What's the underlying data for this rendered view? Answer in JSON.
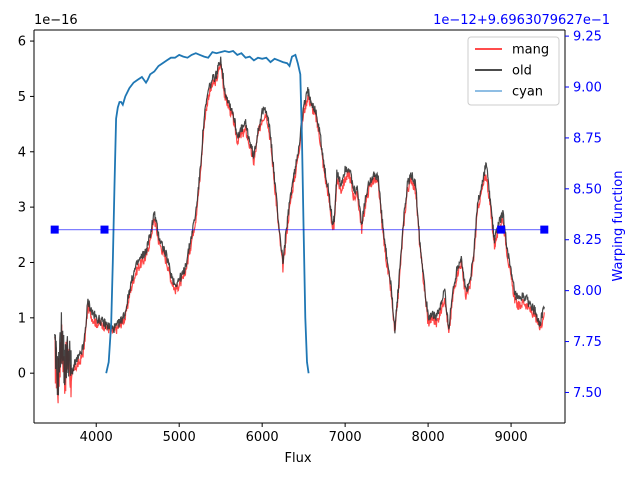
{
  "chart_data": {
    "type": "line",
    "xlabel": "Flux",
    "ylabel_right": "Warping function",
    "left_offset_text": "1e−16",
    "right_offset_text": "1e−12+9.6963079627e−1",
    "xlim": [
      3250,
      9650
    ],
    "ylim_left": [
      -0.9,
      6.2
    ],
    "ylim_right": [
      7.35,
      9.28
    ],
    "x_ticks": [
      4000,
      5000,
      6000,
      7000,
      8000,
      9000
    ],
    "x_tick_labels": [
      "4000",
      "5000",
      "6000",
      "7000",
      "8000",
      "9000"
    ],
    "y_left_ticks": [
      0,
      1,
      2,
      3,
      4,
      5,
      6
    ],
    "y_left_tick_labels": [
      "0",
      "1",
      "2",
      "3",
      "4",
      "5",
      "6"
    ],
    "y_right_ticks": [
      7.5,
      7.75,
      8.0,
      8.25,
      8.5,
      8.75,
      9.0,
      9.25
    ],
    "y_right_tick_labels": [
      "7.50",
      "7.75",
      "8.00",
      "8.25",
      "8.50",
      "8.75",
      "9.00",
      "9.25"
    ],
    "grid": false,
    "legend_position": "top-right",
    "colors": {
      "mang": "#ff3333",
      "old": "#333333",
      "cyan": "#1f77b4",
      "cyan_legend": "#7fb5e0",
      "warp": "#0000ff",
      "right_axis": "#0000ff"
    },
    "series": [
      {
        "name": "mang",
        "axis": "left",
        "x": [
          3500,
          3540,
          3580,
          3620,
          3660,
          3700,
          3750,
          3800,
          3850,
          3900,
          3950,
          4000,
          4050,
          4100,
          4150,
          4200,
          4250,
          4300,
          4350,
          4400,
          4450,
          4500,
          4550,
          4600,
          4650,
          4700,
          4750,
          4800,
          4850,
          4900,
          4950,
          5000,
          5050,
          5100,
          5150,
          5200,
          5250,
          5300,
          5350,
          5400,
          5450,
          5500,
          5550,
          5600,
          5650,
          5700,
          5750,
          5800,
          5850,
          5900,
          5950,
          6000,
          6050,
          6100,
          6150,
          6200,
          6250,
          6300,
          6350,
          6400,
          6450,
          6500,
          6550,
          6600,
          6650,
          6700,
          6750,
          6800,
          6850,
          6870,
          6900,
          6950,
          7000,
          7050,
          7100,
          7150,
          7200,
          7250,
          7300,
          7350,
          7400,
          7450,
          7500,
          7550,
          7600,
          7650,
          7700,
          7750,
          7800,
          7850,
          7900,
          7950,
          8000,
          8050,
          8100,
          8150,
          8200,
          8250,
          8300,
          8350,
          8400,
          8450,
          8500,
          8550,
          8600,
          8650,
          8700,
          8750,
          8800,
          8850,
          8900,
          8950,
          9000,
          9050,
          9100,
          9150,
          9200,
          9250,
          9300,
          9350,
          9400
        ],
        "y": [
          0.3,
          -0.2,
          0.6,
          0.0,
          0.3,
          -0.1,
          0.1,
          0.2,
          0.4,
          1.2,
          1.0,
          0.9,
          0.9,
          0.85,
          0.8,
          0.75,
          0.8,
          0.9,
          1.0,
          1.4,
          1.7,
          1.9,
          2.0,
          2.1,
          2.4,
          2.8,
          2.4,
          2.2,
          2.0,
          1.7,
          1.5,
          1.6,
          1.7,
          2.0,
          2.4,
          2.8,
          3.5,
          4.5,
          5.0,
          5.2,
          5.3,
          5.6,
          5.0,
          4.8,
          4.6,
          4.2,
          4.3,
          4.4,
          4.1,
          3.8,
          4.3,
          4.6,
          4.7,
          4.2,
          3.4,
          2.6,
          1.9,
          2.6,
          3.2,
          3.6,
          4.1,
          4.7,
          5.0,
          4.8,
          4.6,
          4.2,
          3.6,
          3.2,
          2.6,
          2.7,
          3.5,
          3.3,
          3.5,
          3.6,
          3.2,
          3.2,
          2.6,
          3.1,
          3.4,
          3.5,
          3.4,
          2.6,
          2.0,
          1.5,
          0.7,
          1.6,
          2.6,
          3.3,
          3.5,
          3.3,
          2.3,
          1.6,
          0.9,
          1.0,
          0.9,
          1.1,
          1.4,
          0.7,
          1.4,
          1.8,
          2.0,
          1.4,
          1.5,
          2.1,
          3.0,
          3.3,
          3.6,
          3.0,
          2.3,
          2.6,
          2.8,
          2.2,
          1.7,
          1.3,
          1.2,
          1.3,
          1.2,
          1.1,
          1.0,
          0.8,
          1.1
        ]
      },
      {
        "name": "old",
        "axis": "left",
        "x": [
          3500,
          3540,
          3580,
          3620,
          3660,
          3700,
          3750,
          3800,
          3850,
          3900,
          3950,
          4000,
          4050,
          4100,
          4150,
          4200,
          4250,
          4300,
          4350,
          4400,
          4450,
          4500,
          4550,
          4600,
          4650,
          4700,
          4750,
          4800,
          4850,
          4900,
          4950,
          5000,
          5050,
          5100,
          5150,
          5200,
          5250,
          5300,
          5350,
          5400,
          5450,
          5500,
          5550,
          5600,
          5650,
          5700,
          5750,
          5800,
          5850,
          5900,
          5950,
          6000,
          6050,
          6100,
          6150,
          6200,
          6250,
          6300,
          6350,
          6400,
          6450,
          6500,
          6550,
          6600,
          6650,
          6700,
          6750,
          6800,
          6850,
          6870,
          6900,
          6950,
          7000,
          7050,
          7100,
          7150,
          7200,
          7250,
          7300,
          7350,
          7400,
          7450,
          7500,
          7550,
          7600,
          7650,
          7700,
          7750,
          7800,
          7850,
          7900,
          7950,
          8000,
          8050,
          8100,
          8150,
          8200,
          8250,
          8300,
          8350,
          8400,
          8450,
          8500,
          8550,
          8600,
          8650,
          8700,
          8750,
          8800,
          8850,
          8900,
          8950,
          9000,
          9050,
          9100,
          9150,
          9200,
          9250,
          9300,
          9350,
          9400
        ],
        "y": [
          0.4,
          -0.1,
          0.7,
          0.1,
          0.4,
          0.0,
          0.2,
          0.3,
          0.5,
          1.3,
          1.1,
          1.0,
          0.95,
          0.9,
          0.85,
          0.8,
          0.85,
          0.95,
          1.1,
          1.5,
          1.8,
          2.0,
          2.1,
          2.2,
          2.5,
          2.9,
          2.5,
          2.3,
          2.1,
          1.8,
          1.6,
          1.7,
          1.8,
          2.1,
          2.5,
          2.9,
          3.6,
          4.6,
          5.1,
          5.3,
          5.4,
          5.7,
          5.1,
          4.9,
          4.7,
          4.3,
          4.4,
          4.5,
          4.2,
          3.9,
          4.4,
          4.7,
          4.8,
          4.3,
          3.5,
          2.7,
          2.0,
          2.7,
          3.3,
          3.7,
          4.2,
          4.8,
          5.1,
          4.9,
          4.7,
          4.3,
          3.7,
          3.3,
          2.7,
          2.8,
          3.6,
          3.4,
          3.7,
          3.7,
          3.3,
          3.3,
          2.7,
          3.2,
          3.5,
          3.6,
          3.5,
          2.7,
          2.1,
          1.6,
          0.8,
          1.7,
          2.7,
          3.4,
          3.6,
          3.4,
          2.4,
          1.7,
          1.0,
          1.1,
          1.0,
          1.2,
          1.5,
          0.8,
          1.5,
          1.9,
          2.1,
          1.5,
          1.6,
          2.2,
          3.1,
          3.4,
          3.8,
          3.1,
          2.4,
          2.7,
          2.9,
          2.3,
          1.8,
          1.4,
          1.3,
          1.4,
          1.3,
          1.2,
          1.1,
          0.9,
          1.2
        ]
      },
      {
        "name": "cyan",
        "axis": "left",
        "x": [
          4120,
          4150,
          4180,
          4200,
          4220,
          4240,
          4260,
          4280,
          4300,
          4320,
          4350,
          4400,
          4450,
          4500,
          4550,
          4600,
          4620,
          4650,
          4700,
          4750,
          4800,
          4850,
          4900,
          4950,
          5000,
          5050,
          5100,
          5150,
          5200,
          5250,
          5300,
          5350,
          5400,
          5450,
          5500,
          5550,
          5600,
          5650,
          5700,
          5750,
          5800,
          5850,
          5900,
          5950,
          6000,
          6050,
          6100,
          6150,
          6200,
          6250,
          6300,
          6330,
          6360,
          6400,
          6430,
          6460,
          6480,
          6500,
          6520,
          6540,
          6560
        ],
        "y": [
          0.0,
          0.2,
          0.9,
          2.0,
          3.4,
          4.6,
          4.8,
          4.9,
          4.9,
          4.85,
          5.0,
          5.15,
          5.25,
          5.3,
          5.35,
          5.25,
          5.3,
          5.4,
          5.45,
          5.55,
          5.6,
          5.65,
          5.7,
          5.7,
          5.75,
          5.72,
          5.7,
          5.75,
          5.78,
          5.75,
          5.72,
          5.7,
          5.8,
          5.78,
          5.8,
          5.82,
          5.8,
          5.82,
          5.75,
          5.78,
          5.7,
          5.72,
          5.65,
          5.7,
          5.68,
          5.7,
          5.62,
          5.68,
          5.65,
          5.62,
          5.6,
          5.55,
          5.72,
          5.75,
          5.6,
          5.4,
          4.2,
          2.6,
          1.0,
          0.2,
          0.0
        ]
      },
      {
        "name": "warp",
        "axis": "right",
        "x": [
          3500,
          4100,
          8880,
          9400
        ],
        "y": [
          8.3,
          8.3,
          8.3,
          8.3
        ],
        "markers": [
          {
            "x": 3500,
            "y": 8.3
          },
          {
            "x": 4100,
            "y": 8.3
          },
          {
            "x": 8880,
            "y": 8.3
          },
          {
            "x": 9400,
            "y": 8.3
          }
        ]
      }
    ],
    "legend": [
      {
        "label": "mang",
        "color_key": "mang"
      },
      {
        "label": "old",
        "color_key": "old"
      },
      {
        "label": "cyan",
        "color_key": "cyan_legend"
      }
    ]
  }
}
